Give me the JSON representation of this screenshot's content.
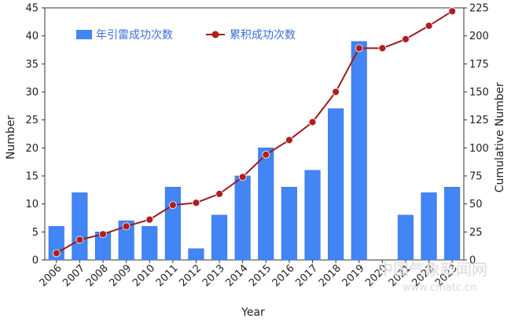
{
  "colors": {
    "bar": "#4285f4",
    "bar_edge": "#3a6fd8",
    "line": "#9b1b1b",
    "marker": "#b01e1e",
    "grid": "#d0d0d0",
    "axis": "#333333",
    "legend_text": "#3a6fd8"
  },
  "watermark": {
    "title": "中国气象新闻网",
    "url": "www.cmatc.cn"
  },
  "chart_data": {
    "type": "bar",
    "categories": [
      "2006",
      "2007",
      "2008",
      "2009",
      "2010",
      "2011",
      "2012",
      "2013",
      "2014",
      "2015",
      "2016",
      "2017",
      "2018",
      "2019",
      "2020",
      "2021",
      "2022",
      "2023"
    ],
    "series": [
      {
        "name": "年引雷成功次数",
        "type": "bar",
        "axis": "left",
        "values": [
          6,
          12,
          5,
          7,
          6,
          13,
          2,
          8,
          15,
          20,
          13,
          16,
          27,
          39,
          0,
          8,
          12,
          13
        ]
      },
      {
        "name": "累积成功次数",
        "type": "line",
        "axis": "right",
        "values": [
          6,
          18,
          23,
          30,
          36,
          49,
          51,
          59,
          74,
          94,
          107,
          123,
          150,
          189,
          189,
          197,
          209,
          222
        ]
      }
    ],
    "xlabel": "Year",
    "ylabel": "Number",
    "y2label": "Cumulative Number",
    "ylim": [
      0,
      45
    ],
    "y2lim": [
      0,
      225
    ],
    "yticks": [
      0,
      5,
      10,
      15,
      20,
      25,
      30,
      35,
      40,
      45
    ],
    "y2ticks": [
      0,
      25,
      50,
      75,
      100,
      125,
      150,
      175,
      200,
      225
    ],
    "grid": false,
    "legend_position": "top-left"
  }
}
